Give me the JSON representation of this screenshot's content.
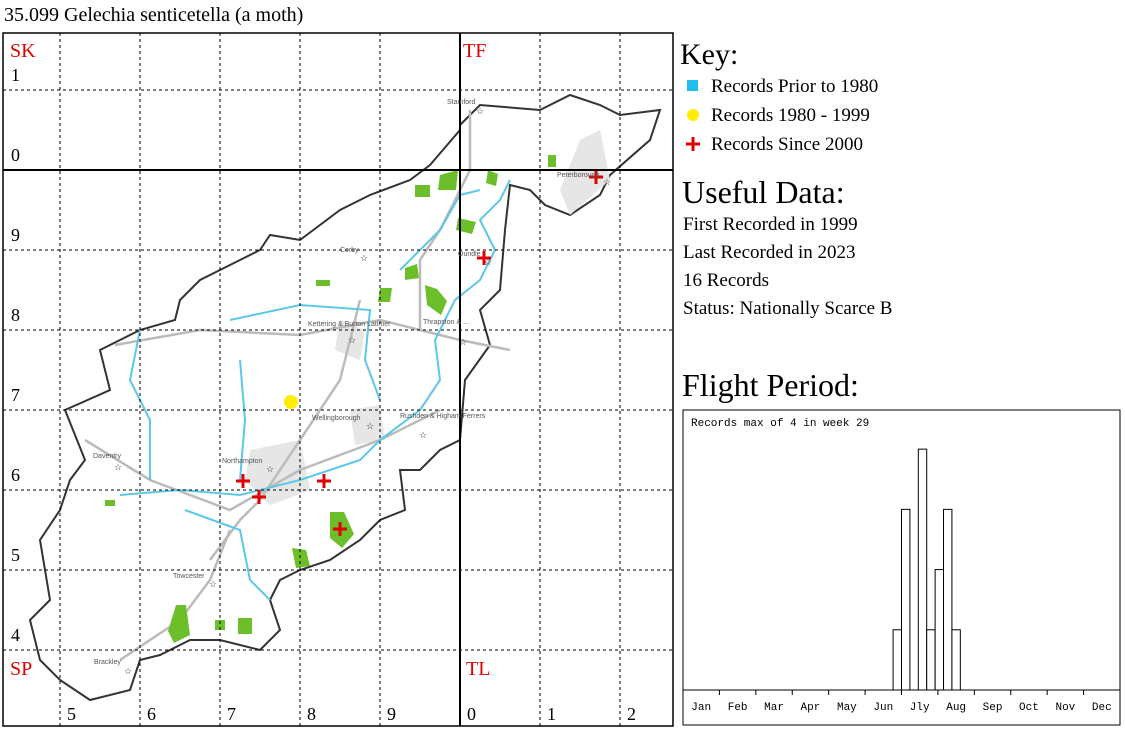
{
  "title": "35.099 Gelechia senticetella (a moth)",
  "map": {
    "squares": [
      "SK",
      "TF",
      "SP",
      "TL"
    ],
    "easting_labels": [
      "5",
      "6",
      "7",
      "8",
      "9",
      "0",
      "1",
      "2"
    ],
    "northing_labels": [
      "1",
      "0",
      "9",
      "8",
      "7",
      "6",
      "5",
      "4"
    ],
    "towns": [
      "Stamford",
      "Peterborough",
      "Corby",
      "Oundle",
      "Kettering & Burton Latimer",
      "Thrapston & ...",
      "Wellingborough",
      "Rushden & Higham Ferrers",
      "Daventry",
      "Northampton",
      "Towcester",
      "Brackley"
    ]
  },
  "key": {
    "title": "Key:",
    "items": [
      "Records Prior to 1980",
      "Records 1980 - 1999",
      "Records Since 2000"
    ]
  },
  "useful_data": {
    "title": "Useful Data:",
    "lines": [
      "First Recorded in 1999",
      "Last Recorded in 2023",
      "16 Records",
      "Status: Nationally Scarce B"
    ]
  },
  "chart_data": {
    "type": "bar",
    "title": "Flight Period:",
    "annotation": "Records max of 4 in week 29",
    "categories": [
      "Jan",
      "Feb",
      "Mar",
      "Apr",
      "May",
      "Jun",
      "Jly",
      "Aug",
      "Sep",
      "Oct",
      "Nov",
      "Dec"
    ],
    "x": [
      26,
      27,
      28,
      29,
      30,
      31,
      32,
      33
    ],
    "values": [
      1,
      3,
      0,
      4,
      1,
      2,
      3,
      1
    ],
    "xlim": [
      1,
      53
    ],
    "ylim": [
      0,
      4.65
    ]
  }
}
